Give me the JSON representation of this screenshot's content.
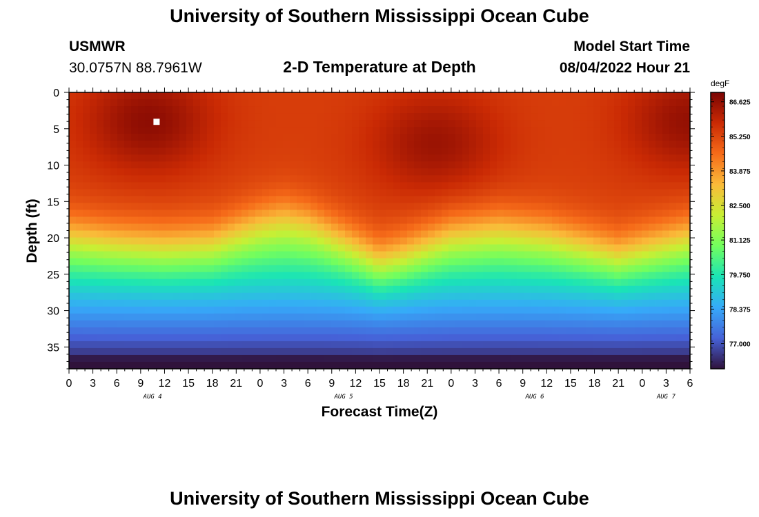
{
  "page": {
    "title_top": "University of Southern Mississippi Ocean Cube",
    "title_bottom": "University of Southern Mississippi Ocean Cube"
  },
  "station": {
    "name": "USMWR",
    "coords": "30.0757N  88.7961W"
  },
  "plot": {
    "subtitle": "2-D Temperature at Depth"
  },
  "model": {
    "label": "Model Start Time",
    "time": "08/04/2022 Hour 21"
  },
  "chart_data": {
    "type": "heatmap",
    "title": "2-D Temperature at Depth",
    "xlabel": "Forecast Time(Z)",
    "ylabel": "Depth (ft)",
    "x_ticks": [
      "0",
      "3",
      "6",
      "9",
      "12",
      "15",
      "18",
      "21",
      "0",
      "3",
      "6",
      "9",
      "12",
      "15",
      "18",
      "21",
      "0",
      "3",
      "6",
      "9",
      "12",
      "15",
      "18",
      "21",
      "0",
      "3",
      "6"
    ],
    "date_labels": [
      {
        "label": "AUG 4",
        "hour_offset": 10.5
      },
      {
        "label": "AUG 5",
        "hour_offset": 34.5
      },
      {
        "label": "AUG 6",
        "hour_offset": 58.5
      },
      {
        "label": "AUG 7",
        "hour_offset": 75
      }
    ],
    "x_range_hours": [
      0,
      78
    ],
    "y_ticks": [
      "0",
      "5",
      "10",
      "15",
      "20",
      "25",
      "30",
      "35"
    ],
    "y_range_ft": [
      0,
      38
    ],
    "colorbar": {
      "units": "degF",
      "ticks": [
        "86.625",
        "85.250",
        "83.875",
        "82.500",
        "81.125",
        "79.750",
        "78.375",
        "77.000"
      ],
      "range": [
        76.0,
        87.0
      ]
    },
    "thermocline_depth_ft": [
      {
        "hour": 0,
        "depth": 19
      },
      {
        "hour": 6,
        "depth": 20
      },
      {
        "hour": 12,
        "depth": 20.5
      },
      {
        "hour": 18,
        "depth": 20
      },
      {
        "hour": 24,
        "depth": 17
      },
      {
        "hour": 27,
        "depth": 16
      },
      {
        "hour": 30,
        "depth": 17
      },
      {
        "hour": 36,
        "depth": 21
      },
      {
        "hour": 39,
        "depth": 23
      },
      {
        "hour": 42,
        "depth": 22
      },
      {
        "hour": 48,
        "depth": 19
      },
      {
        "hour": 54,
        "depth": 18
      },
      {
        "hour": 60,
        "depth": 19
      },
      {
        "hour": 66,
        "depth": 21
      },
      {
        "hour": 69,
        "depth": 22
      },
      {
        "hour": 72,
        "depth": 21
      },
      {
        "hour": 78,
        "depth": 19
      }
    ],
    "surface_maxima": [
      {
        "hour": 10,
        "depth": 4,
        "temp": 86.7
      },
      {
        "hour": 46,
        "depth": 7,
        "temp": 86.5
      },
      {
        "hour": 78,
        "depth": 4,
        "temp": 86.6
      }
    ],
    "marker": {
      "hour": 10,
      "depth_ft": 4
    },
    "colors": {
      "scale": [
        "#30123b",
        "#4662d8",
        "#36aaf9",
        "#1ae4b6",
        "#72fe5e",
        "#c8ef34",
        "#faba39",
        "#f66b19",
        "#ca2a04",
        "#7a0403"
      ]
    }
  }
}
